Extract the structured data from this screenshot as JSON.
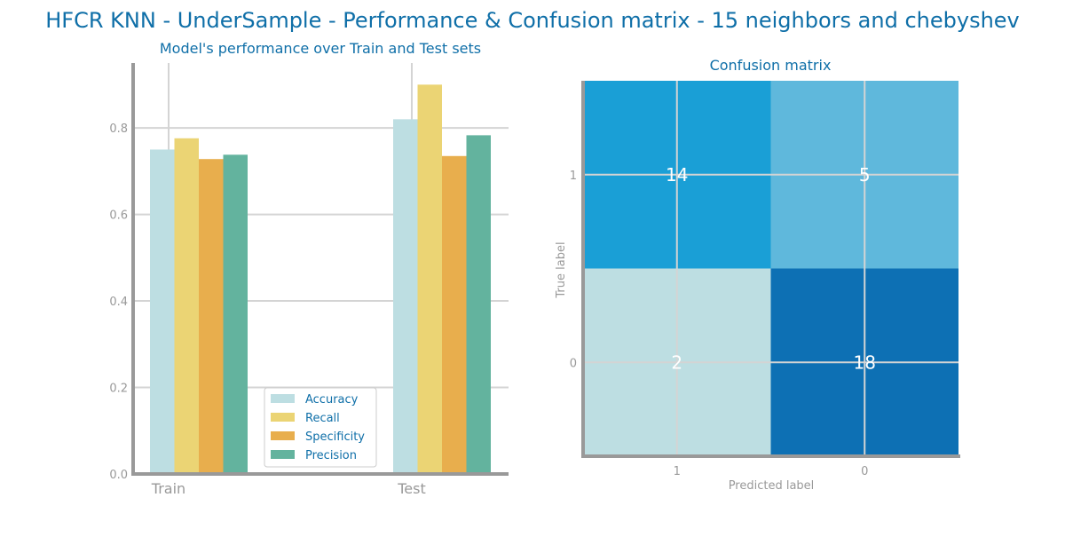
{
  "figure_title": "HFCR KNN - UnderSample - Performance & Confusion matrix - 15 neighbors and chebyshev",
  "colors": {
    "title": "#0f6fa8",
    "axis": "#999999",
    "grid": "#d4d4d4",
    "tick_text": "#999999"
  },
  "chart_data": [
    {
      "type": "bar",
      "title": "Model's performance over Train and Test sets",
      "categories": [
        "Train",
        "Test"
      ],
      "series": [
        {
          "name": "Accuracy",
          "color": "#bddee2",
          "values": [
            0.75,
            0.82
          ]
        },
        {
          "name": "Recall",
          "color": "#ebd474",
          "values": [
            0.776,
            0.9
          ]
        },
        {
          "name": "Specificity",
          "color": "#e8ae4d",
          "values": [
            0.728,
            0.735
          ]
        },
        {
          "name": "Precision",
          "color": "#63b39e",
          "values": [
            0.738,
            0.783
          ]
        }
      ],
      "ylim": [
        0,
        0.95
      ],
      "yticks": [
        "0.0",
        "0.2",
        "0.4",
        "0.6",
        "0.8"
      ],
      "ytick_values": [
        0,
        0.2,
        0.4,
        0.6,
        0.8
      ],
      "grid": true,
      "legend_position": "lower-center"
    },
    {
      "type": "heatmap",
      "title": "Confusion matrix",
      "xlabel": "Predicted label",
      "ylabel": "True label",
      "x_categories": [
        "1",
        "0"
      ],
      "y_categories": [
        "1",
        "0"
      ],
      "values": [
        [
          14,
          5
        ],
        [
          2,
          18
        ]
      ],
      "cell_colors": [
        [
          "#1a9fd6",
          "#5fb8dc"
        ],
        [
          "#bddee2",
          "#0d70b4"
        ]
      ],
      "grid": true
    }
  ]
}
